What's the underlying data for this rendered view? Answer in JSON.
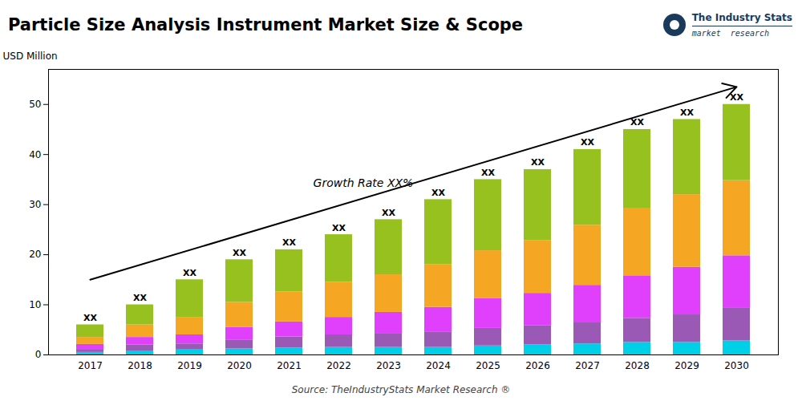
{
  "chart_data": {
    "type": "bar",
    "stacked": true,
    "title": "Particle Size Analysis Instrument Market Size & Scope",
    "ylabel": "USD Million",
    "categories": [
      "2017",
      "2018",
      "2019",
      "2020",
      "2021",
      "2022",
      "2023",
      "2024",
      "2025",
      "2026",
      "2027",
      "2028",
      "2029",
      "2030"
    ],
    "series": [
      {
        "color": "#00cfe8",
        "values": [
          0.5,
          0.8,
          1.0,
          1.2,
          1.4,
          1.5,
          1.5,
          1.5,
          1.8,
          2.0,
          2.2,
          2.5,
          2.5,
          2.8
        ]
      },
      {
        "color": "#9b59b6",
        "values": [
          0.6,
          1.2,
          1.2,
          1.8,
          2.2,
          2.5,
          2.8,
          3.0,
          3.5,
          3.8,
          4.2,
          4.8,
          5.5,
          6.5
        ]
      },
      {
        "color": "#e040fb",
        "values": [
          1.0,
          1.5,
          1.8,
          2.5,
          3.0,
          3.5,
          4.2,
          5.0,
          6.0,
          6.5,
          7.5,
          8.5,
          9.5,
          10.5
        ]
      },
      {
        "color": "#f5a623",
        "values": [
          1.4,
          2.5,
          3.5,
          5.0,
          6.0,
          7.0,
          7.5,
          8.5,
          9.5,
          10.5,
          12.0,
          13.5,
          14.5,
          15.0
        ]
      },
      {
        "color": "#96c11f",
        "values": [
          2.5,
          4.0,
          7.5,
          8.5,
          8.4,
          9.5,
          11.0,
          13.0,
          14.2,
          14.2,
          15.1,
          15.7,
          15.0,
          15.2
        ]
      }
    ],
    "totals": [
      6.0,
      10.0,
      15.0,
      19.0,
      21.0,
      24.0,
      27.0,
      31.0,
      35.0,
      37.0,
      41.0,
      45.0,
      47.0,
      50.0
    ],
    "total_labels": [
      "XX",
      "XX",
      "XX",
      "XX",
      "XX",
      "XX",
      "XX",
      "XX",
      "XX",
      "XX",
      "XX",
      "XX",
      "XX",
      "XX"
    ],
    "ylim": [
      0,
      57
    ],
    "yticks": [
      0,
      10,
      20,
      30,
      40,
      50
    ],
    "grid": false,
    "annotations": [
      {
        "text": "Growth Rate XX%",
        "arrow": {
          "x1": "2017",
          "y1": 15.0,
          "x2": "2030",
          "y2": 53.5
        }
      }
    ],
    "source": "Source: TheIndustryStats Market Research ®",
    "logo": {
      "lines": [
        "The Industry Stats",
        "market  research"
      ],
      "color": "#1a3a5c"
    },
    "background": "#ffffff"
  }
}
